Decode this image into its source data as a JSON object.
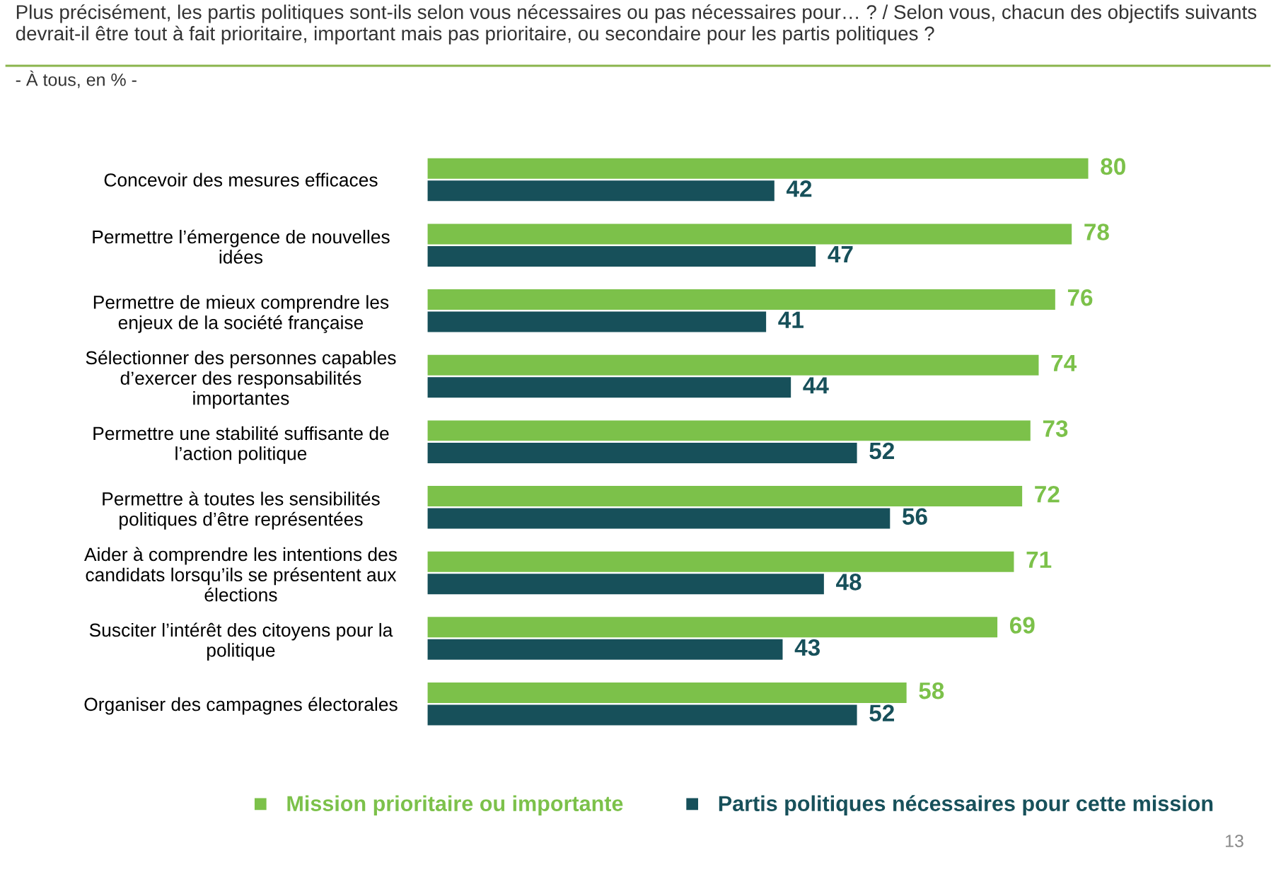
{
  "chart_data": {
    "type": "bar",
    "orientation": "horizontal",
    "title": "Plus précisément, les partis politiques sont-ils selon vous nécessaires ou pas nécessaires pour… ? / Selon vous, chacun des objectifs suivants devrait-il être tout à fait prioritaire, important mais pas prioritaire, ou secondaire pour les partis politiques ?",
    "subtitle": "- À tous, en % -",
    "categories": [
      "Concevoir des mesures efficaces",
      "Permettre l’émergence de nouvelles\nidées",
      "Permettre de mieux comprendre les\nenjeux de la société française",
      "Sélectionner des personnes capables\nd’exercer des responsabilités\nimportantes",
      "Permettre une stabilité suffisante de\nl’action politique",
      "Permettre à toutes les sensibilités\npolitiques d’être représentées",
      "Aider à comprendre les intentions des\ncandidats lorsqu’ils se présentent aux\nélections",
      "Susciter l’intérêt des citoyens pour la\npolitique",
      "Organiser des campagnes électorales"
    ],
    "series": [
      {
        "name": "Mission prioritaire ou importante",
        "color": "#7cc14a",
        "values": [
          80,
          78,
          76,
          74,
          73,
          72,
          71,
          69,
          58
        ]
      },
      {
        "name": "Partis politiques nécessaires pour cette mission",
        "color": "#17505a",
        "values": [
          42,
          47,
          41,
          44,
          52,
          56,
          48,
          43,
          52
        ]
      }
    ],
    "data_labels": true,
    "legend": "bottom",
    "grid": false,
    "annotations": [
      "13"
    ]
  }
}
